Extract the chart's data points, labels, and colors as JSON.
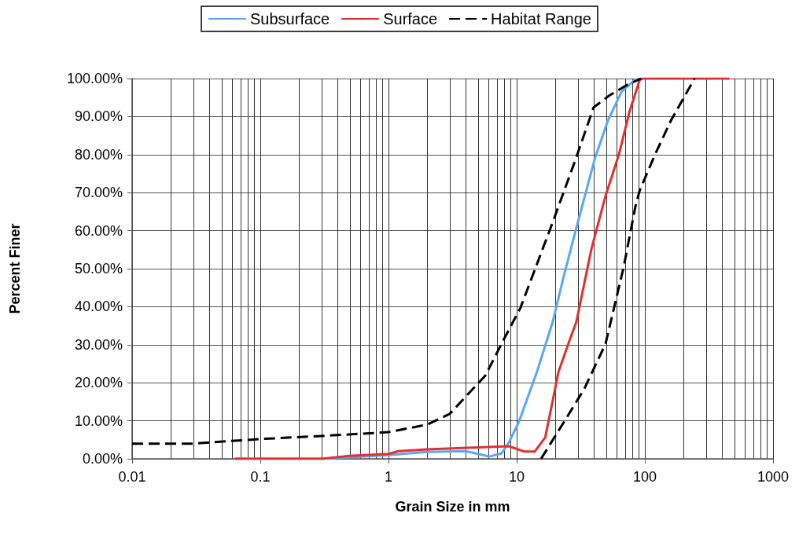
{
  "chart_data": {
    "type": "line",
    "xlabel": "Grain Size in mm",
    "ylabel": "Percent Finer",
    "log": "x",
    "xlim": [
      0.01,
      1000
    ],
    "xticks": [
      0.01,
      0.1,
      1,
      10,
      100,
      1000
    ],
    "ylim": [
      0,
      100
    ],
    "yticks": [
      {
        "value": 0,
        "label": "0.00%"
      },
      {
        "value": 10,
        "label": "10.00%"
      },
      {
        "value": 20,
        "label": "20.00%"
      },
      {
        "value": 30,
        "label": "30.00%"
      },
      {
        "value": 40,
        "label": "40.00%"
      },
      {
        "value": 50,
        "label": "50.00%"
      },
      {
        "value": 60,
        "label": "60.00%"
      },
      {
        "value": 70,
        "label": "70.00%"
      },
      {
        "value": 80,
        "label": "80.00%"
      },
      {
        "value": 90,
        "label": "90.00%"
      },
      {
        "value": 100,
        "label": "100.00%"
      }
    ],
    "grid": true,
    "legend": "top",
    "marker": "none",
    "series": [
      {
        "name": "Subsurface",
        "color": "#5aa7f5",
        "line_style": "solid",
        "x": [
          0.063,
          0.3,
          1,
          2,
          4,
          5,
          6.1,
          7.6,
          8.7,
          10.4,
          14.4,
          19.1,
          23.4,
          29.2,
          41,
          51.6,
          65.7,
          83,
          91
        ],
        "values": [
          0,
          0,
          1,
          1.8,
          2,
          1.3,
          0.6,
          1.4,
          4.3,
          9.7,
          22.9,
          36,
          48.3,
          60.7,
          79.3,
          89,
          96.5,
          99.6,
          100
        ]
      },
      {
        "name": "Surface",
        "color": "#e03030",
        "line_style": "solid",
        "x": [
          0.063,
          0.3,
          0.5,
          1,
          1.2,
          2,
          5,
          8.7,
          11.5,
          13.8,
          16.7,
          19.1,
          21.2,
          25.4,
          29.2,
          38.3,
          49.2,
          62.7,
          75.6,
          91,
          96.5,
          457
        ],
        "values": [
          0,
          0,
          0.8,
          1.3,
          2,
          2.5,
          3,
          3.3,
          1.9,
          1.9,
          5.6,
          15.3,
          22.9,
          30.4,
          36,
          55.2,
          69,
          80,
          91.1,
          99.6,
          100,
          100
        ]
      },
      {
        "name": "Habitat Range",
        "color": "#000000",
        "line_style": "dashed",
        "x": [
          0.01,
          0.03,
          0.1,
          0.3,
          1,
          2,
          3,
          5.7,
          7.6,
          10.7,
          19.1,
          29.2,
          39.8,
          52.6,
          72.3,
          93.6
        ],
        "values": [
          4,
          4,
          5.2,
          6,
          7,
          9,
          11.8,
          21.9,
          30.2,
          39.7,
          62.2,
          79.3,
          92.4,
          95.5,
          98.3,
          100
        ]
      },
      {
        "color": "#000000",
        "line_style": "dashed",
        "x": [
          15.5,
          23.7,
          33.7,
          49.3,
          68.3,
          84.3,
          91,
          120,
          160,
          244
        ],
        "values": [
          0,
          10,
          18.4,
          30.2,
          50.4,
          66.3,
          70.5,
          80,
          89,
          100
        ]
      }
    ]
  }
}
